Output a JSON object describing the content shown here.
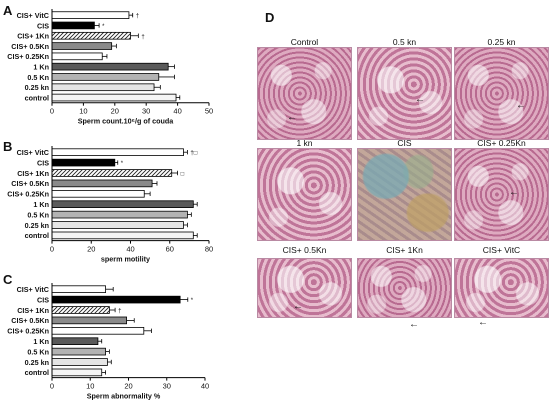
{
  "panels": {
    "A": "A",
    "B": "B",
    "C": "C",
    "D": "D"
  },
  "chart_data": [
    {
      "type": "bar",
      "orientation": "horizontal",
      "categories": [
        "CIS+ VitC",
        "CIS",
        "CIS+ 1Kn",
        "CIS+ 0.5Kn",
        "CIS+ 0.25Kn",
        "1 Kn",
        "0.5 Kn",
        "0.25 kn",
        "control"
      ],
      "values": [
        24.5,
        13.5,
        25,
        19,
        16,
        37,
        34,
        32.5,
        39.5
      ],
      "errors": [
        1.2,
        1.5,
        2.5,
        1.5,
        1.5,
        2,
        5,
        2,
        1.2
      ],
      "annotations": [
        "†",
        "*",
        "†",
        "",
        "",
        "",
        "",
        "",
        ""
      ],
      "fills": [
        "#ffffff",
        "#000000",
        "hatch",
        "#8a8a8a",
        "#ffffff",
        "#5a5a5a",
        "#b3b3b3",
        "#e5e5e5",
        "#f5f5f5"
      ],
      "xlabel": "Sperm count.10⁶/g of couda",
      "ylabel": "",
      "xlim": [
        0,
        50
      ],
      "xticks": [
        "0",
        "10",
        "20",
        "30",
        "40",
        "50"
      ]
    },
    {
      "type": "bar",
      "orientation": "horizontal",
      "categories": [
        "CIS+ VitC",
        "CIS",
        "CIS+ 1Kn",
        "CIS+ 0.5Kn",
        "CIS+ 0.25Kn",
        "1 Kn",
        "0.5 Kn",
        "0.25 kn",
        "control"
      ],
      "values": [
        67,
        32,
        61,
        51,
        47,
        72,
        69,
        67,
        72
      ],
      "errors": [
        2,
        1.5,
        3,
        2.5,
        3,
        2,
        2,
        2,
        2
      ],
      "annotations": [
        "†□",
        "*",
        "□",
        "",
        "",
        "",
        "",
        "",
        ""
      ],
      "fills": [
        "#ffffff",
        "#000000",
        "hatch",
        "#8a8a8a",
        "#ffffff",
        "#5a5a5a",
        "#b3b3b3",
        "#e5e5e5",
        "#f5f5f5"
      ],
      "xlabel": "sperm motility",
      "ylabel": "",
      "xlim": [
        0,
        80
      ],
      "xticks": [
        "0",
        "20",
        "40",
        "60",
        "80"
      ]
    },
    {
      "type": "bar",
      "orientation": "horizontal",
      "categories": [
        "CIS+ VitC",
        "CIS",
        "CIS+ 1Kn",
        "CIS+ 0.5Kn",
        "CIS+ 0.25Kn",
        "1 Kn",
        "0.5 Kn",
        "0.25 kn",
        "control"
      ],
      "values": [
        14,
        33.5,
        15,
        19.5,
        24,
        12,
        14,
        14.5,
        13
      ],
      "errors": [
        2,
        2,
        1.5,
        2,
        2,
        1,
        1,
        1,
        1
      ],
      "annotations": [
        "",
        "*",
        "†",
        "",
        "",
        "",
        "",
        "",
        ""
      ],
      "fills": [
        "#ffffff",
        "#000000",
        "hatch",
        "#8a8a8a",
        "#ffffff",
        "#5a5a5a",
        "#b3b3b3",
        "#e5e5e5",
        "#f5f5f5"
      ],
      "xlabel": "Sperm abnormality %",
      "ylabel": "",
      "xlim": [
        0,
        40
      ],
      "xticks": [
        "0",
        "10",
        "20",
        "30",
        "40"
      ]
    }
  ],
  "micrographs": [
    {
      "title": "Control",
      "texture": "tex-a"
    },
    {
      "title": "0.5 kn",
      "texture": "tex-b"
    },
    {
      "title": "0.25 kn",
      "texture": "tex-a"
    },
    {
      "title": "1 kn",
      "texture": "tex-b"
    },
    {
      "title": "CIS",
      "texture": "tex-cis"
    },
    {
      "title": "CIS+ 0.25Kn",
      "texture": "tex-a"
    },
    {
      "title": "CIS+ 0.5Kn",
      "texture": "tex-b"
    },
    {
      "title": "CIS+ 1Kn",
      "texture": "tex-a"
    },
    {
      "title": "CIS+ VitC",
      "texture": "tex-b"
    }
  ],
  "arrow_glyph": "←"
}
